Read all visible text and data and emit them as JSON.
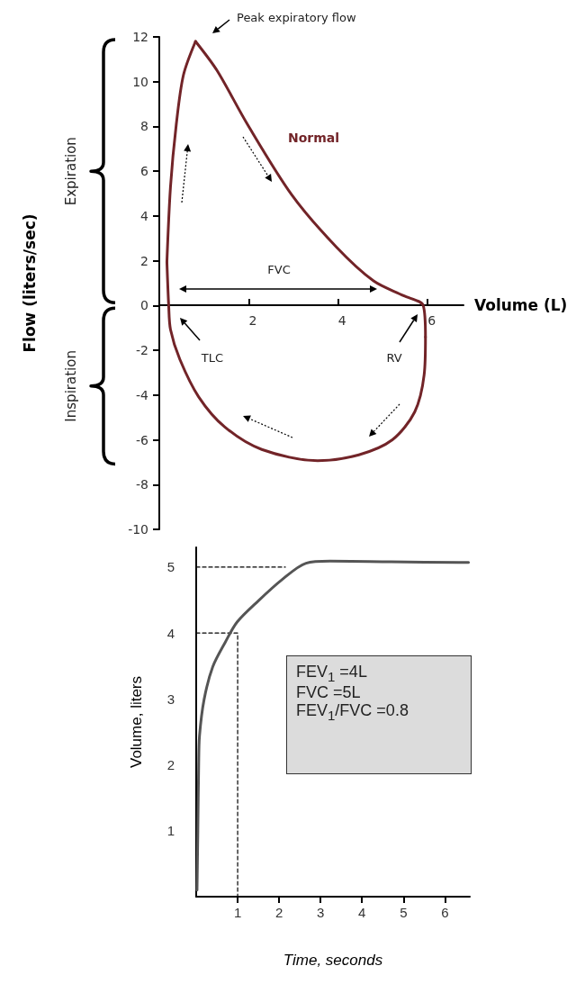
{
  "chart_data": [
    {
      "type": "line",
      "xlabel": "Volume (L)",
      "ylabel": "Flow (liters/sec)",
      "xlim": [
        0,
        6.8
      ],
      "ylim": [
        -10,
        12
      ],
      "xticks": [
        2,
        4,
        6
      ],
      "yticks": [
        -10,
        -8,
        -6,
        -4,
        -2,
        0,
        2,
        4,
        6,
        8,
        10,
        12
      ],
      "grid": false,
      "legend": false,
      "marker": "none",
      "series": [
        {
          "name": "Normal",
          "color": "#722428",
          "x": [
            0.81,
            1.29,
            1.96,
            2.96,
            3.96,
            4.79,
            5.46,
            5.9,
            5.95
          ],
          "values": [
            11.8,
            10.5,
            8.13,
            4.95,
            2.61,
            1.1,
            0.44,
            0,
            -1.4
          ]
        },
        {
          "color": "#722428",
          "x": [
            5.95,
            5.92,
            5.71,
            5.21,
            4.46,
            3.54,
            2.29,
            1.46,
            0.88,
            0.46,
            0.25,
            0.21,
            0.17
          ],
          "values": [
            -1.4,
            -3.1,
            -4.75,
            -6.0,
            -6.67,
            -6.93,
            -6.43,
            -5.42,
            -4.08,
            -2.41,
            -1.07,
            0,
            1.94
          ]
        },
        {
          "color": "#722428",
          "x": [
            0.17,
            0.25,
            0.38,
            0.54,
            0.81
          ],
          "values": [
            1.94,
            5.3,
            8.1,
            10.3,
            11.8
          ]
        }
      ],
      "annotations": [
        "Peak expiratory flow",
        "FVC",
        "TLC",
        "RV",
        "Expiration",
        "Inspiration"
      ]
    },
    {
      "type": "line",
      "xlabel": "Time, seconds",
      "ylabel": "Volume, liters",
      "xlim": [
        0,
        6.6
      ],
      "ylim": [
        0,
        5.3
      ],
      "xticks": [
        1,
        2,
        3,
        4,
        5,
        6
      ],
      "yticks": [
        1,
        2,
        3,
        4,
        5
      ],
      "grid": false,
      "legend": false,
      "marker": "none",
      "series": [
        {
          "color": "#555555",
          "x": [
            0.02,
            0.04,
            0.06,
            0.08,
            0.19,
            0.4,
            0.7,
            0.99,
            1.5,
            2.07,
            2.65,
            3.23,
            4.7,
            6.57
          ],
          "values": [
            0.1,
            1,
            2,
            2.44,
            2.99,
            3.49,
            3.86,
            4.17,
            4.49,
            4.81,
            5.06,
            5.09,
            5.08,
            5.07
          ]
        },
        {
          "color": "#000000",
          "line_style": "dashed",
          "x": [
            0,
            1,
            1
          ],
          "values": [
            4,
            4,
            0
          ]
        },
        {
          "color": "#000000",
          "line_style": "dashed",
          "x": [
            0,
            2.15
          ],
          "values": [
            5,
            5
          ]
        }
      ],
      "annotations": [
        "FEV$_{1}$ =4L",
        "FVC =5L",
        "FEV$_{1}$/FVC =0.8"
      ]
    }
  ]
}
